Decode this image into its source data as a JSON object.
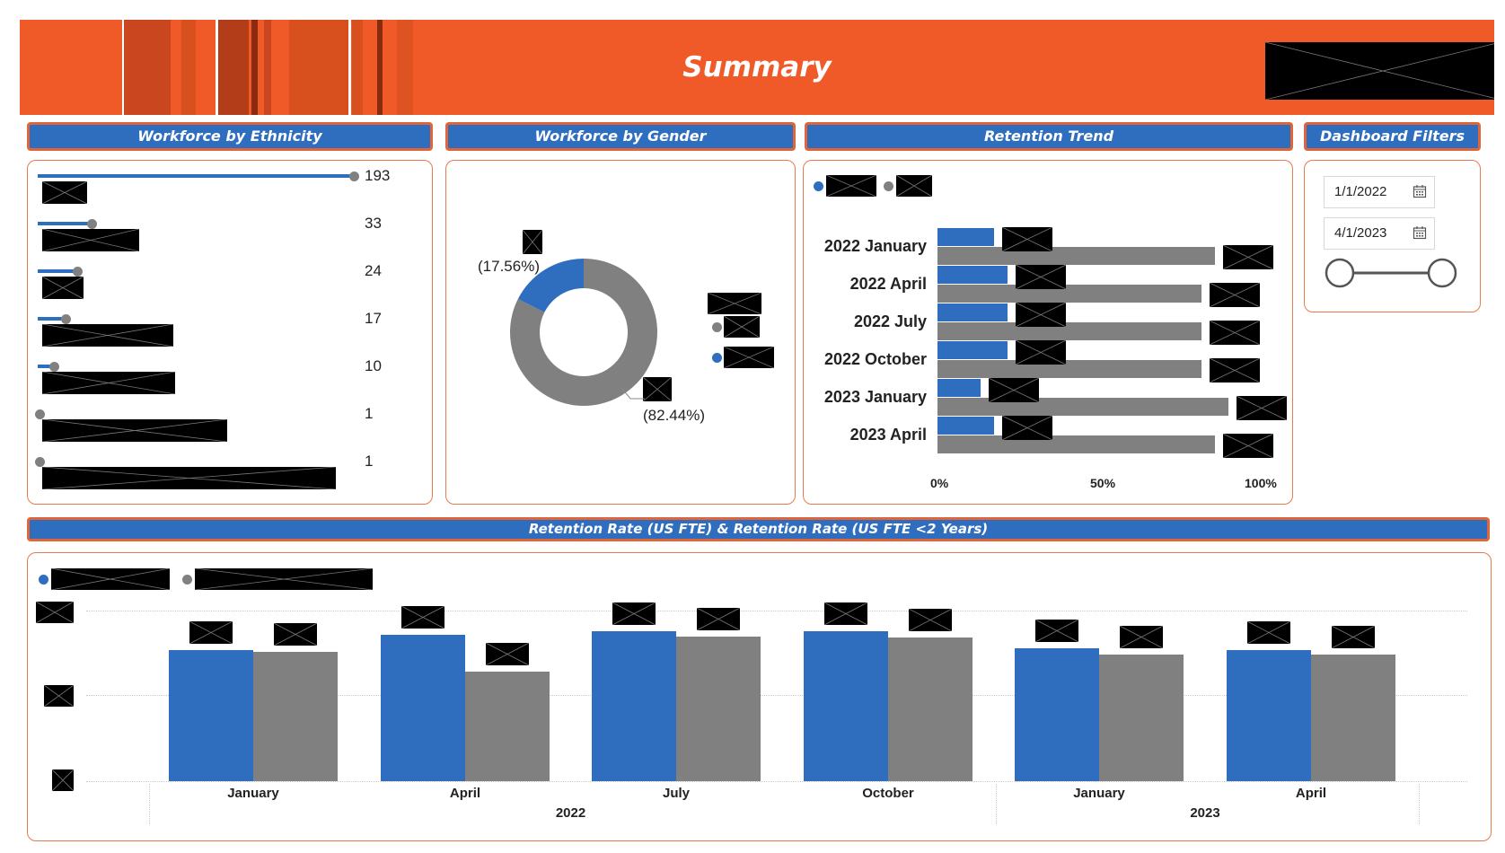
{
  "banner": {
    "title": "Summary",
    "color": "#ef5a28"
  },
  "headers": {
    "ethnicity": "Workforce by Ethnicity",
    "gender": "Workforce by Gender",
    "retention_trend": "Retention Trend",
    "filters": "Dashboard Filters",
    "retention_rate": "Retention Rate (US FTE) & Retention Rate (US FTE <2 Years)"
  },
  "filters": {
    "start_date": "1/1/2022",
    "end_date": "4/1/2023",
    "calendar_icon": "calendar-icon"
  },
  "colors": {
    "blue": "#2f6ebf",
    "gray": "#808080",
    "accent": "#e87a50"
  },
  "chart_data": [
    {
      "type": "bar",
      "values": [
        193,
        33,
        24,
        17,
        10,
        1,
        1
      ]
    },
    {
      "type": "pie",
      "variant": "donut",
      "slices": [
        {
          "value": 17.56,
          "label": "(17.56%)",
          "color": "#2f6ebf"
        },
        {
          "value": 82.44,
          "label": "(82.44%)",
          "color": "#808080"
        }
      ]
    },
    {
      "type": "bar",
      "orientation": "horizontal",
      "categories": [
        "2022 January",
        "2022 April",
        "2022 July",
        "2022 October",
        "2023 January",
        "2023 April"
      ],
      "series": [
        {
          "values": [
            17,
            21,
            21,
            21,
            13,
            17
          ],
          "color": "#2f6ebf"
        },
        {
          "values": [
            83,
            79,
            79,
            79,
            87,
            83
          ],
          "color": "#808080"
        }
      ],
      "x_ticks": [
        "0%",
        "50%",
        "100%"
      ],
      "xlim": [
        0,
        100
      ]
    },
    {
      "type": "bar",
      "categories": [
        "January",
        "April",
        "July",
        "October",
        "January",
        "April"
      ],
      "groups": [
        "2022",
        "2023"
      ],
      "group_sizes": [
        4,
        2
      ],
      "series": [
        {
          "values": [
            0.77,
            0.86,
            0.88,
            0.88,
            0.78,
            0.77
          ],
          "color": "#2f6ebf"
        },
        {
          "values": [
            0.76,
            0.64,
            0.85,
            0.84,
            0.74,
            0.74
          ],
          "color": "#808080"
        }
      ],
      "ylim": [
        0,
        1
      ],
      "grid": true,
      "legend": "top-left"
    }
  ]
}
